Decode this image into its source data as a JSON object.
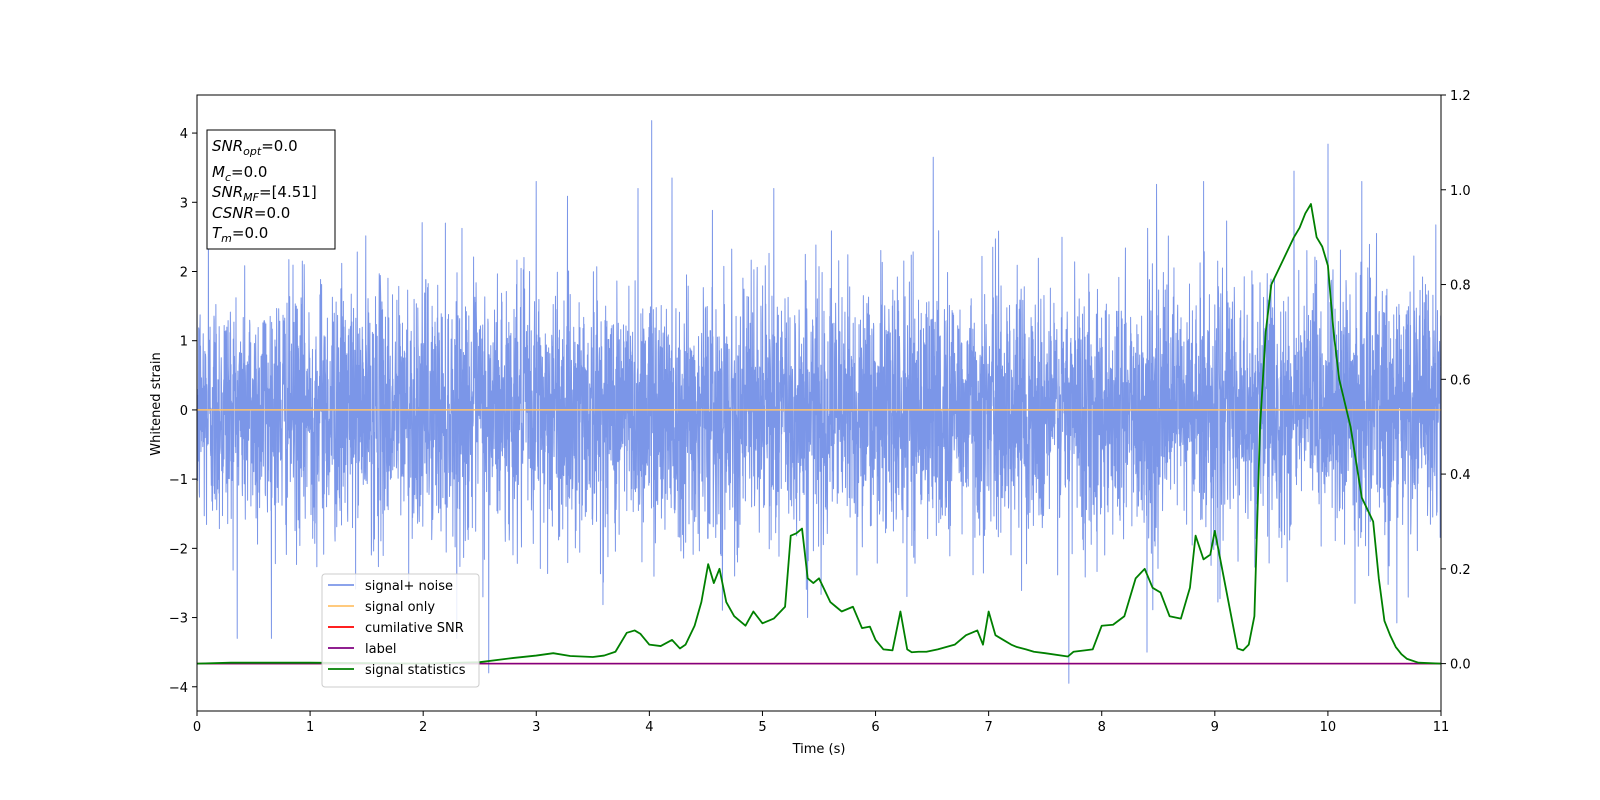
{
  "chart_data": {
    "type": "line",
    "xlabel": "Time (s)",
    "ylabel": "Whitened strain",
    "xlim": [
      0,
      11
    ],
    "ylim_left": [
      -4.35,
      4.55
    ],
    "ylim_right": [
      -0.1,
      1.2
    ],
    "xticks": [
      "0",
      "1",
      "2",
      "3",
      "4",
      "5",
      "6",
      "7",
      "8",
      "9",
      "10",
      "11"
    ],
    "yticks_left": [
      "−4",
      "−3",
      "−2",
      "−1",
      "0",
      "1",
      "2",
      "3",
      "4"
    ],
    "yticks_right": [
      "0.0",
      "0.2",
      "0.4",
      "0.6",
      "0.8",
      "1.0",
      "1.2"
    ],
    "legend": {
      "placement": "lower-left",
      "entries": [
        {
          "label": "signal+ noise",
          "color": "#7b96e8"
        },
        {
          "label": "signal only",
          "color": "#ffc36b"
        },
        {
          "label": "cumilative SNR",
          "color": "#ff0000"
        },
        {
          "label": "label",
          "color": "#800080"
        },
        {
          "label": "signal statistics",
          "color": "#008000"
        }
      ]
    },
    "info_box": {
      "placement": "top-left",
      "lines": [
        {
          "sym": "SNR",
          "sub": "opt",
          "val": "=0.0"
        },
        {
          "sym": "M",
          "sub": "c",
          "val": "=0.0"
        },
        {
          "sym": "SNR",
          "sub": "MF",
          "val": "=[4.51]"
        },
        {
          "sym": "CSNR",
          "sub": "",
          "val": "=0.0"
        },
        {
          "sym": "T",
          "sub": "m",
          "val": "=0.0"
        }
      ]
    },
    "series": [
      {
        "name": "signal+ noise",
        "axis": "left",
        "color": "#7b96e8",
        "style": "gaussian-noise",
        "amplitude_sigma": 0.9,
        "spikes": [
          {
            "x": 4.02,
            "y": 4.18
          },
          {
            "x": 10.0,
            "y": 3.84
          },
          {
            "x": 6.51,
            "y": 3.65
          },
          {
            "x": 7.71,
            "y": -3.95
          },
          {
            "x": 2.58,
            "y": -3.8
          },
          {
            "x": 4.2,
            "y": 3.35
          },
          {
            "x": 3.0,
            "y": 3.3
          },
          {
            "x": 9.7,
            "y": 3.45
          },
          {
            "x": 10.3,
            "y": 3.3
          },
          {
            "x": 0.1,
            "y": 2.9
          },
          {
            "x": 8.9,
            "y": 3.3
          },
          {
            "x": 5.1,
            "y": 3.2
          },
          {
            "x": 8.4,
            "y": -3.5
          },
          {
            "x": 3.9,
            "y": 3.2
          },
          {
            "x": 5.4,
            "y": -3.0
          }
        ]
      },
      {
        "name": "signal only",
        "axis": "left",
        "color": "#ffc36b",
        "x": [
          0,
          11
        ],
        "y": [
          0,
          0
        ]
      },
      {
        "name": "cumilative SNR",
        "axis": "right",
        "color": "#ff0000",
        "x": [
          0,
          11
        ],
        "y": [
          0,
          0
        ]
      },
      {
        "name": "label",
        "axis": "right",
        "color": "#800080",
        "x": [
          0,
          11
        ],
        "y": [
          0,
          0
        ]
      },
      {
        "name": "signal statistics",
        "axis": "right",
        "color": "#008000",
        "x": [
          0.0,
          0.3,
          1.0,
          2.0,
          2.5,
          2.8,
          3.0,
          3.15,
          3.3,
          3.5,
          3.6,
          3.7,
          3.8,
          3.87,
          3.92,
          4.0,
          4.1,
          4.2,
          4.27,
          4.32,
          4.4,
          4.46,
          4.52,
          4.57,
          4.62,
          4.68,
          4.75,
          4.85,
          4.92,
          5.0,
          5.1,
          5.2,
          5.25,
          5.3,
          5.35,
          5.4,
          5.45,
          5.5,
          5.6,
          5.65,
          5.7,
          5.8,
          5.88,
          5.95,
          6.0,
          6.07,
          6.15,
          6.22,
          6.28,
          6.32,
          6.38,
          6.45,
          6.55,
          6.7,
          6.8,
          6.9,
          6.95,
          7.0,
          7.06,
          7.13,
          7.2,
          7.25,
          7.33,
          7.4,
          7.5,
          7.7,
          7.75,
          7.85,
          7.92,
          8.0,
          8.1,
          8.2,
          8.3,
          8.38,
          8.45,
          8.52,
          8.6,
          8.7,
          8.78,
          8.83,
          8.9,
          8.96,
          9.0,
          9.2,
          9.25,
          9.3,
          9.35,
          9.4,
          9.45,
          9.5,
          9.6,
          9.7,
          9.75,
          9.8,
          9.85,
          9.9,
          9.95,
          10.0,
          10.05,
          10.1,
          10.2,
          10.3,
          10.4,
          10.45,
          10.5,
          10.55,
          10.6,
          10.65,
          10.7,
          10.8,
          11.0
        ],
        "y": [
          0.0,
          0.002,
          0.002,
          0.0,
          0.003,
          0.012,
          0.017,
          0.022,
          0.016,
          0.014,
          0.017,
          0.025,
          0.065,
          0.07,
          0.063,
          0.04,
          0.037,
          0.05,
          0.032,
          0.04,
          0.08,
          0.13,
          0.21,
          0.17,
          0.2,
          0.13,
          0.1,
          0.08,
          0.11,
          0.085,
          0.095,
          0.12,
          0.27,
          0.275,
          0.285,
          0.18,
          0.17,
          0.18,
          0.13,
          0.12,
          0.11,
          0.12,
          0.075,
          0.078,
          0.05,
          0.03,
          0.028,
          0.11,
          0.03,
          0.024,
          0.025,
          0.025,
          0.03,
          0.04,
          0.06,
          0.07,
          0.04,
          0.11,
          0.06,
          0.05,
          0.04,
          0.035,
          0.03,
          0.025,
          0.022,
          0.015,
          0.025,
          0.028,
          0.03,
          0.08,
          0.082,
          0.1,
          0.18,
          0.2,
          0.16,
          0.15,
          0.1,
          0.095,
          0.16,
          0.27,
          0.22,
          0.23,
          0.28,
          0.032,
          0.028,
          0.04,
          0.1,
          0.5,
          0.7,
          0.8,
          0.85,
          0.9,
          0.92,
          0.95,
          0.97,
          0.9,
          0.88,
          0.84,
          0.7,
          0.6,
          0.5,
          0.35,
          0.3,
          0.18,
          0.09,
          0.06,
          0.035,
          0.02,
          0.01,
          0.002,
          0.0
        ]
      }
    ]
  }
}
